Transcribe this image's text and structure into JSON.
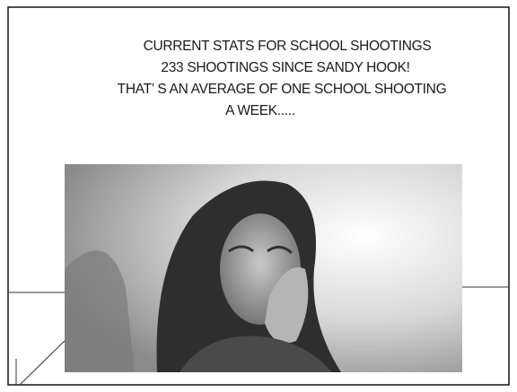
{
  "slide": {
    "lines": [
      "CURRENT STATS FOR SCHOOL SHOOTINGS",
      "233 SHOOTINGS SINCE SANDY HOOK!",
      "THAT’ S AN AVERAGE OF ONE SCHOOL SHOOTING",
      "A WEEK....."
    ]
  }
}
